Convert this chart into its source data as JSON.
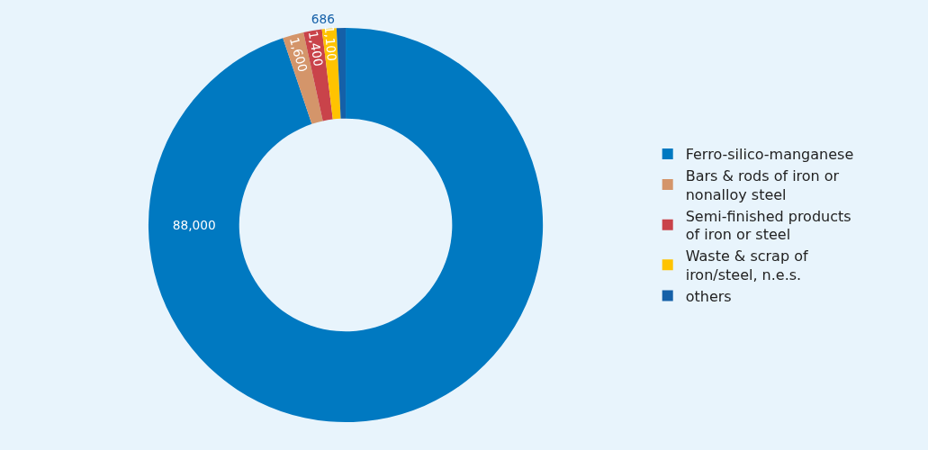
{
  "chart_data": {
    "type": "donut",
    "categories": [
      "Ferro-silico-manganese",
      "Bars & rods of iron or nonalloy steel",
      "Semi-finished products of iron or steel",
      "Waste & scrap of iron/steel, n.e.s.",
      "others"
    ],
    "values": [
      88000,
      1600,
      1400,
      1100,
      686
    ],
    "colors": [
      "#0079c1",
      "#d4956a",
      "#c9434a",
      "#ffc300",
      "#1560a8"
    ],
    "value_labels": [
      "88,000",
      "1,600",
      "1,400",
      "1,100",
      "686"
    ],
    "legend": "right"
  }
}
